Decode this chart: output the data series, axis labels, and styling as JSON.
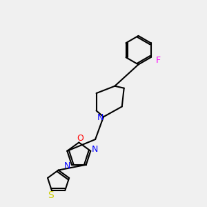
{
  "bg_color": "#f0f0f0",
  "bond_color": "#000000",
  "bond_width": 1.5,
  "N_color": "#0000ff",
  "O_color": "#ff0000",
  "S_color": "#cccc00",
  "F_color": "#ff00ff",
  "atoms": {
    "N_label": "N",
    "O_label": "O",
    "S_label": "S",
    "F_label": "F"
  },
  "figsize": [
    3.0,
    3.0
  ],
  "dpi": 100
}
